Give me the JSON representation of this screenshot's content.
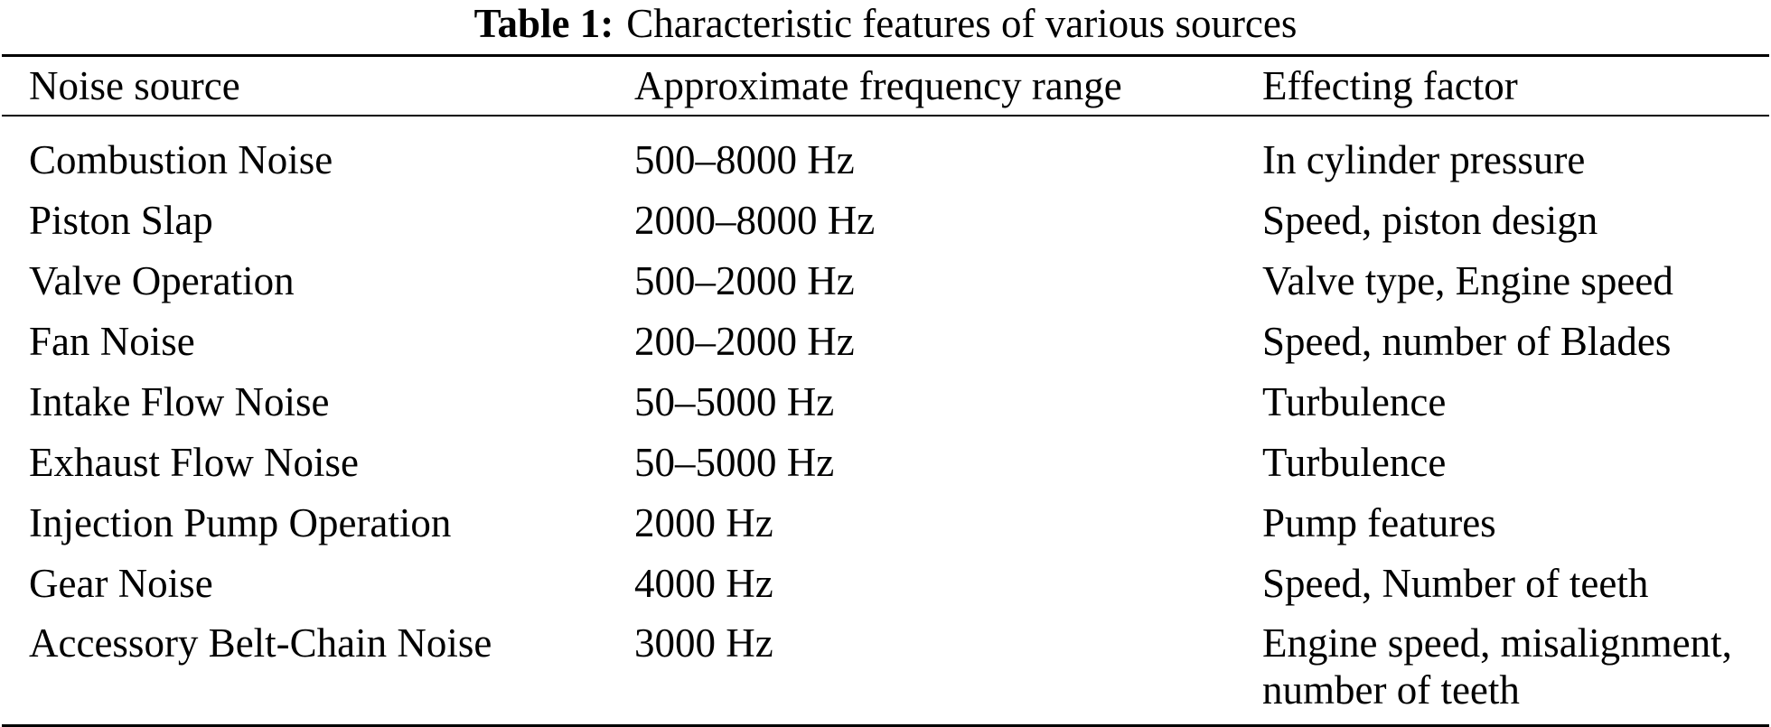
{
  "caption": {
    "label": "Table 1:",
    "text": "Characteristic features of various sources"
  },
  "table": {
    "columns": {
      "source": "Noise source",
      "range": "Approximate frequency range",
      "factor": "Effecting factor"
    },
    "rows": [
      {
        "source": "Combustion Noise",
        "range": "500–8000 Hz",
        "factor": "In cylinder pressure"
      },
      {
        "source": "Piston Slap",
        "range": "2000–8000 Hz",
        "factor": "Speed, piston design"
      },
      {
        "source": "Valve Operation",
        "range": "500–2000 Hz",
        "factor": "Valve type, Engine speed"
      },
      {
        "source": "Fan Noise",
        "range": "200–2000 Hz",
        "factor": "Speed, number of Blades"
      },
      {
        "source": "Intake Flow Noise",
        "range": "50–5000 Hz",
        "factor": "Turbulence"
      },
      {
        "source": "Exhaust Flow Noise",
        "range": "50–5000 Hz",
        "factor": "Turbulence"
      },
      {
        "source": "Injection Pump Operation",
        "range": "2000 Hz",
        "factor": "Pump features"
      },
      {
        "source": "Gear Noise",
        "range": "4000 Hz",
        "factor": "Speed, Number of teeth"
      },
      {
        "source": "Accessory Belt-Chain Noise",
        "range": "3000 Hz",
        "factor": "Engine speed, misalignment, number of teeth"
      }
    ]
  },
  "colors": {
    "text": "#000000",
    "rule": "#000000",
    "background": "#ffffff"
  }
}
